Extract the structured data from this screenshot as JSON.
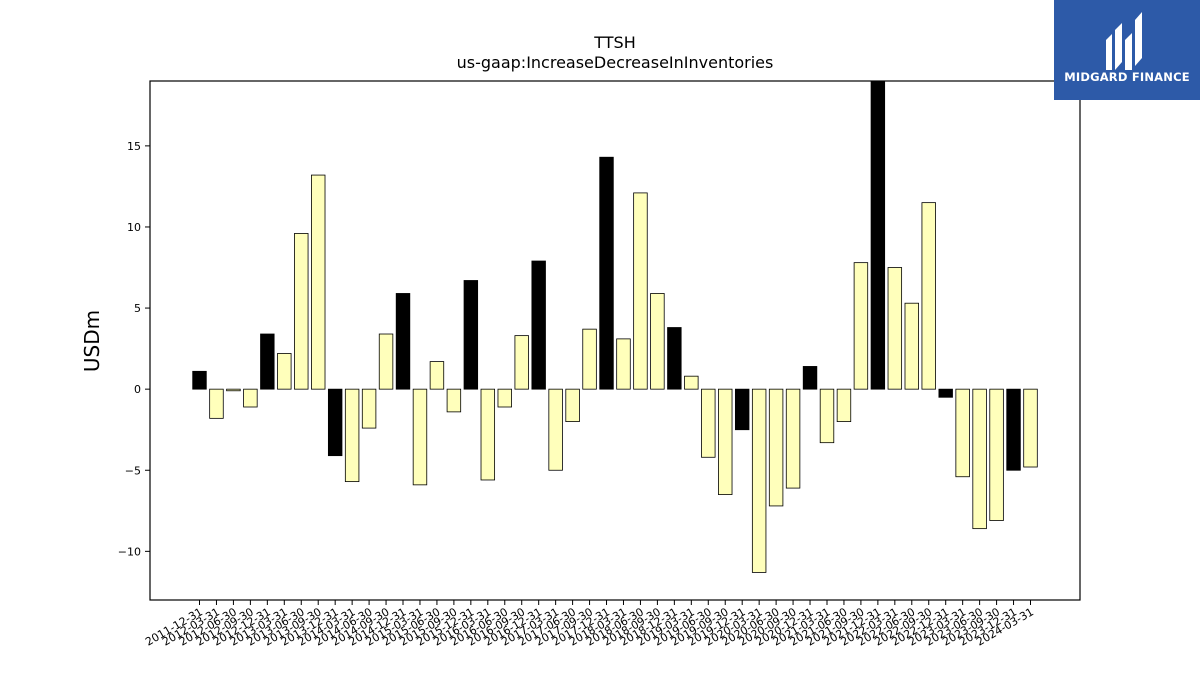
{
  "brand": {
    "name": "MIDGARD FINANCE",
    "bg_color": "#2d5aa8"
  },
  "chart_data": {
    "type": "bar",
    "title": "TTSH",
    "subtitle": "us-gaap:IncreaseDecreaseInInventories",
    "xlabel": "",
    "ylabel": "USDm",
    "ylim": [
      -13,
      19
    ],
    "yticks": [
      -10,
      -5,
      0,
      5,
      10,
      15
    ],
    "grid": false,
    "legend": "none",
    "colors": {
      "q4": "#000000",
      "other": "#ffffbb",
      "edge": "#000000"
    },
    "categories": [
      "2011-12-31",
      "2012-03-31",
      "2012-06-30",
      "2012-09-30",
      "2012-12-31",
      "2013-03-31",
      "2013-06-30",
      "2013-09-30",
      "2013-12-31",
      "2014-03-31",
      "2014-06-30",
      "2014-09-30",
      "2014-12-31",
      "2015-03-31",
      "2015-06-30",
      "2015-09-30",
      "2015-12-31",
      "2016-03-31",
      "2016-06-30",
      "2016-09-30",
      "2016-12-31",
      "2017-03-31",
      "2017-06-30",
      "2017-09-30",
      "2017-12-31",
      "2018-03-31",
      "2018-06-30",
      "2018-09-30",
      "2018-12-31",
      "2019-03-31",
      "2019-06-30",
      "2019-09-30",
      "2019-12-31",
      "2020-03-31",
      "2020-06-30",
      "2020-09-30",
      "2020-12-31",
      "2021-03-31",
      "2021-06-30",
      "2021-09-30",
      "2021-12-31",
      "2022-03-31",
      "2022-06-30",
      "2022-09-30",
      "2022-12-31",
      "2023-03-31",
      "2023-06-30",
      "2023-09-30",
      "2023-12-31",
      "2024-03-31"
    ],
    "values": [
      1.1,
      -1.8,
      -0.1,
      -1.1,
      3.4,
      2.2,
      9.6,
      13.2,
      -4.1,
      -5.7,
      -2.4,
      3.4,
      5.9,
      -5.9,
      1.7,
      -1.4,
      6.7,
      -5.6,
      -1.1,
      3.3,
      7.9,
      -5.0,
      -2.0,
      3.7,
      14.3,
      3.1,
      12.1,
      5.9,
      3.8,
      0.8,
      -4.2,
      -6.5,
      -2.5,
      -11.3,
      -7.2,
      -6.1,
      1.4,
      -3.3,
      -2.0,
      7.8,
      19.5,
      7.5,
      5.3,
      11.5,
      -0.5,
      -5.4,
      -8.6,
      -8.1,
      -5.0,
      -4.8
    ]
  }
}
